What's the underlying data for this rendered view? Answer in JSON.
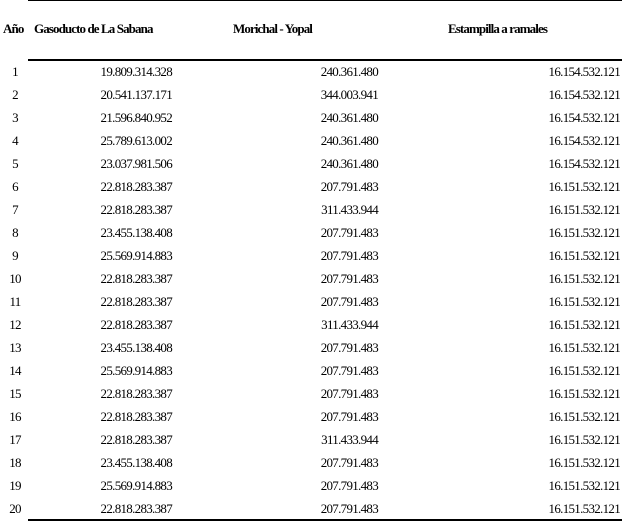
{
  "table": {
    "headers": [
      "Año",
      "Gasoducto de La Sabana",
      "Morichal - Yopal",
      "Estampilla a ramales"
    ],
    "rows": [
      [
        "1",
        "19.809.314.328",
        "240.361.480",
        "16.154.532.121"
      ],
      [
        "2",
        "20.541.137.171",
        "344.003.941",
        "16.154.532.121"
      ],
      [
        "3",
        "21.596.840.952",
        "240.361.480",
        "16.154.532.121"
      ],
      [
        "4",
        "25.789.613.002",
        "240.361.480",
        "16.154.532.121"
      ],
      [
        "5",
        "23.037.981.506",
        "240.361.480",
        "16.154.532.121"
      ],
      [
        "6",
        "22.818.283.387",
        "207.791.483",
        "16.151.532.121"
      ],
      [
        "7",
        "22.818.283.387",
        "311.433.944",
        "16.151.532.121"
      ],
      [
        "8",
        "23.455.138.408",
        "207.791.483",
        "16.151.532.121"
      ],
      [
        "9",
        "25.569.914.883",
        "207.791.483",
        "16.151.532.121"
      ],
      [
        "10",
        "22.818.283.387",
        "207.791.483",
        "16.151.532.121"
      ],
      [
        "11",
        "22.818.283.387",
        "207.791.483",
        "16.151.532.121"
      ],
      [
        "12",
        "22.818.283.387",
        "311.433.944",
        "16.151.532.121"
      ],
      [
        "13",
        "23.455.138.408",
        "207.791.483",
        "16.151.532.121"
      ],
      [
        "14",
        "25.569.914.883",
        "207.791.483",
        "16.151.532.121"
      ],
      [
        "15",
        "22.818.283.387",
        "207.791.483",
        "16.151.532.121"
      ],
      [
        "16",
        "22.818.283.387",
        "207.791.483",
        "16.151.532.121"
      ],
      [
        "17",
        "22.818.283.387",
        "311.433.944",
        "16.151.532.121"
      ],
      [
        "18",
        "23.455.138.408",
        "207.791.483",
        "16.151.532.121"
      ],
      [
        "19",
        "25.569.914.883",
        "207.791.483",
        "16.151.532.121"
      ],
      [
        "20",
        "22.818.283.387",
        "207.791.483",
        "16.151.532.121"
      ]
    ]
  }
}
